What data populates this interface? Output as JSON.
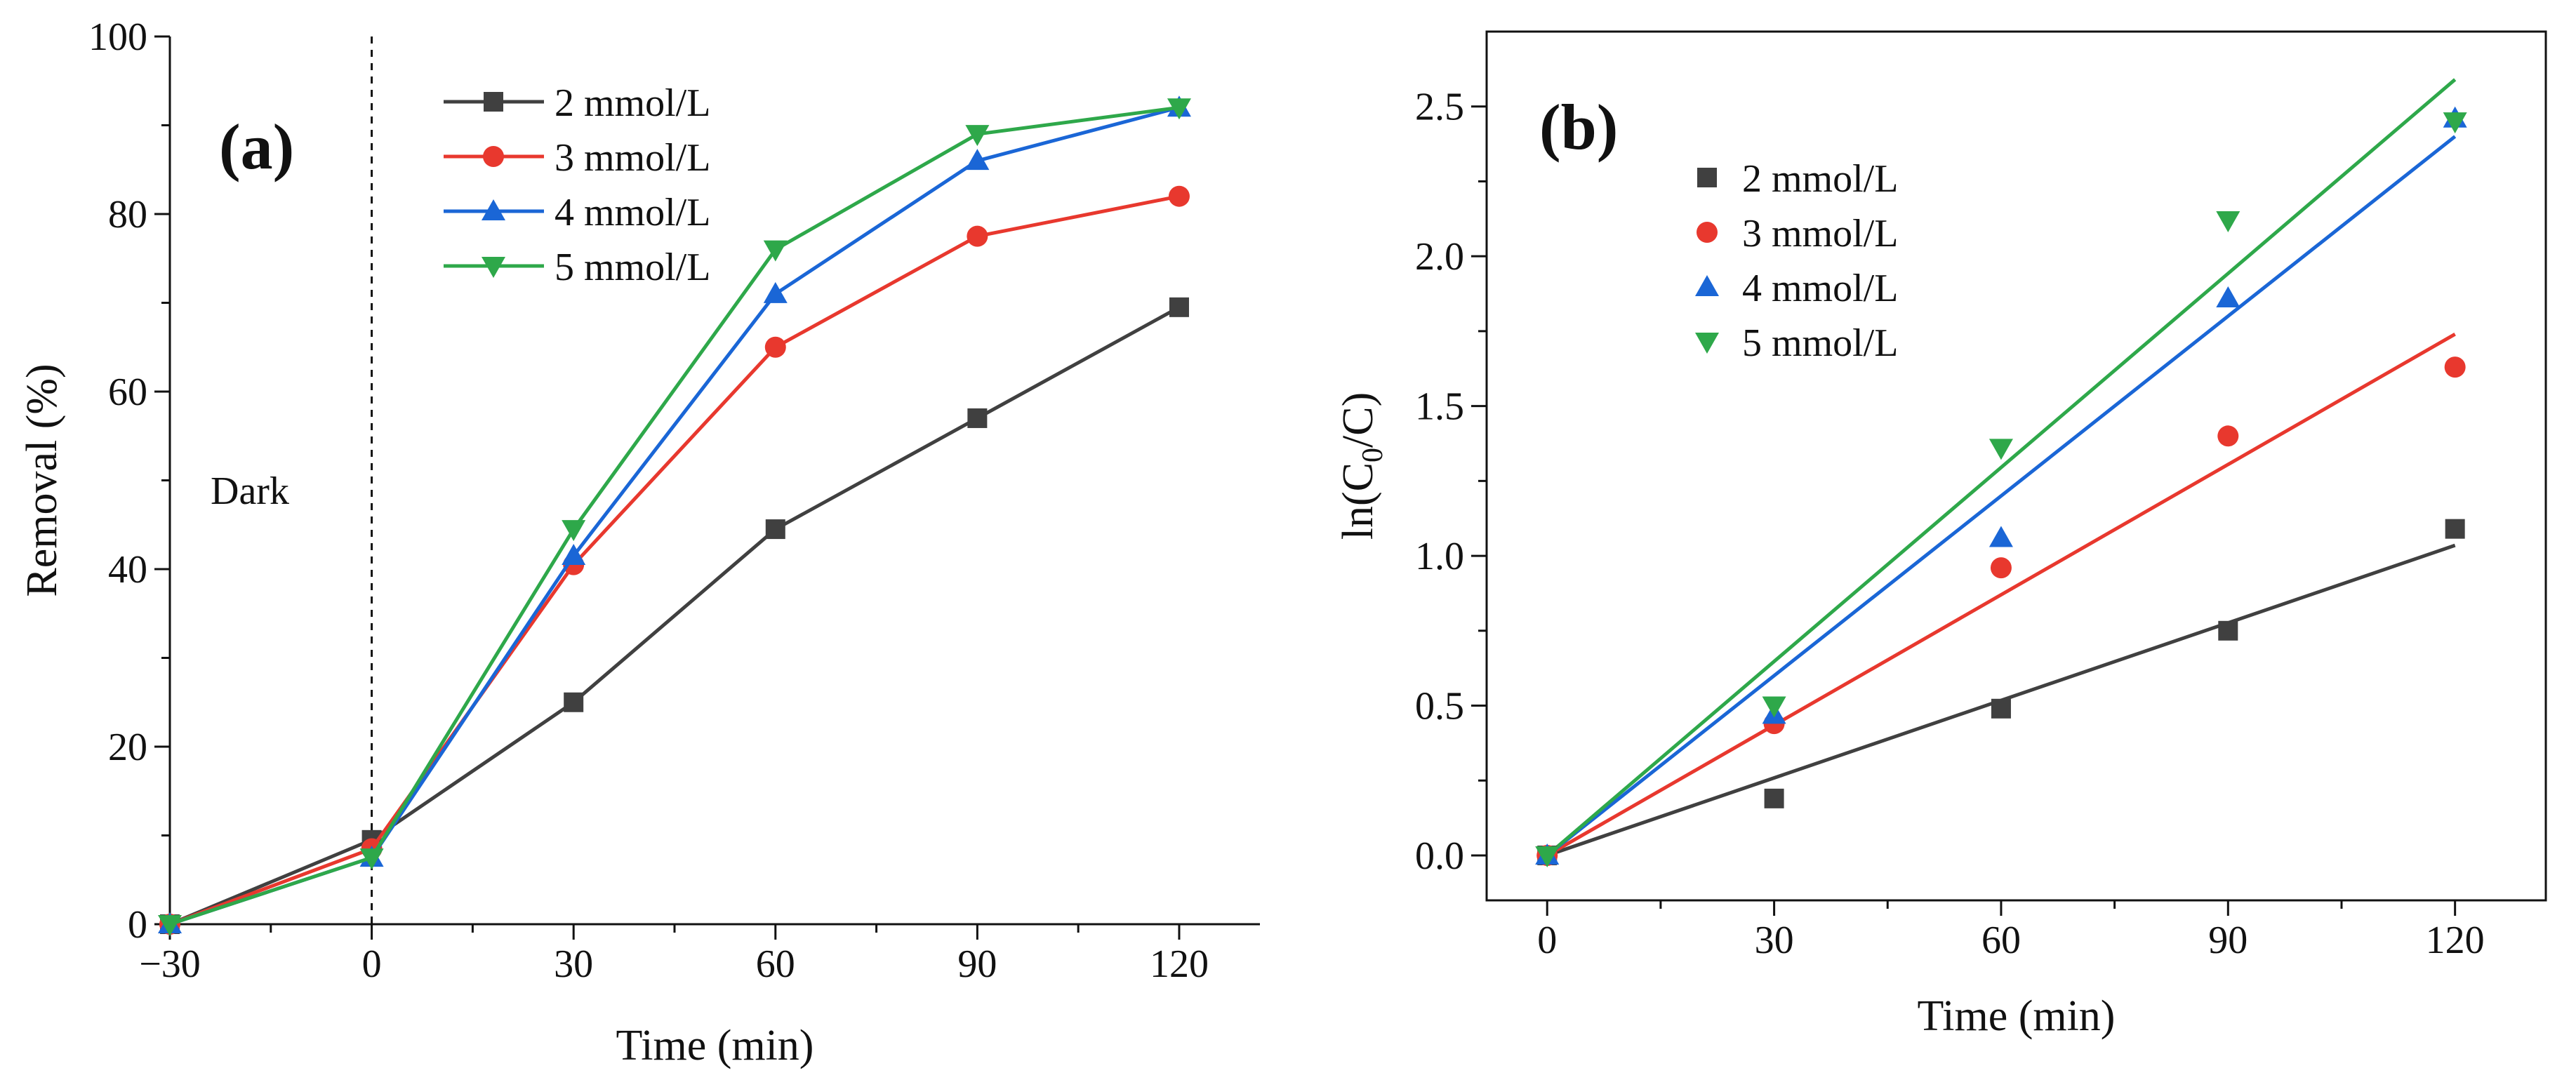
{
  "chart_data": [
    {
      "panel": "(a)",
      "type": "line",
      "xlabel": "Time (min)",
      "ylabel": "Removal (%)",
      "xlim": [
        -30,
        132
      ],
      "ylim": [
        0,
        100
      ],
      "xticks": [
        -30,
        0,
        30,
        60,
        90,
        120
      ],
      "xtick_labels": [
        "−30",
        "0",
        "30",
        "60",
        "90",
        "120"
      ],
      "yticks": [
        0,
        20,
        40,
        60,
        80,
        100
      ],
      "ytick_labels": [
        "0",
        "20",
        "40",
        "60",
        "80",
        "100"
      ],
      "annotation": "Dark",
      "dark_divider_x": 0,
      "legend_position": "top-center",
      "series": [
        {
          "name": "2 mmol/L",
          "color": "#404040",
          "marker": "square",
          "x": [
            -30,
            0,
            30,
            60,
            90,
            120
          ],
          "values": [
            0,
            9.5,
            25,
            44.5,
            57,
            69.5
          ]
        },
        {
          "name": "3 mmol/L",
          "color": "#e8382e",
          "marker": "circle",
          "x": [
            -30,
            0,
            30,
            60,
            90,
            120
          ],
          "values": [
            0,
            8.5,
            40.5,
            65,
            77.5,
            82
          ]
        },
        {
          "name": "4 mmol/L",
          "color": "#1a66d6",
          "marker": "triangle",
          "x": [
            -30,
            0,
            30,
            60,
            90,
            120
          ],
          "values": [
            0,
            7.5,
            41.5,
            71,
            86,
            92
          ]
        },
        {
          "name": "5 mmol/L",
          "color": "#2ea84a",
          "marker": "triangle-down",
          "x": [
            -30,
            0,
            30,
            60,
            90,
            120
          ],
          "values": [
            0,
            7.5,
            44.5,
            76,
            89,
            92
          ]
        }
      ]
    },
    {
      "panel": "(b)",
      "type": "scatter",
      "xlabel": "Time (min)",
      "ylabel_main": "ln(C",
      "ylabel_sub": "0",
      "ylabel_tail": "/C)",
      "xlim": [
        -8,
        132
      ],
      "ylim": [
        -0.15,
        2.75
      ],
      "xticks": [
        0,
        30,
        60,
        90,
        120
      ],
      "xtick_labels": [
        "0",
        "30",
        "60",
        "90",
        "120"
      ],
      "yticks": [
        0,
        0.5,
        1.0,
        1.5,
        2.0,
        2.5
      ],
      "ytick_labels": [
        "0.0",
        "0.5",
        "1.0",
        "1.5",
        "2.0",
        "2.5"
      ],
      "legend_position": "top-left",
      "series": [
        {
          "name": "2 mmol/L",
          "color": "#404040",
          "marker": "square",
          "x": [
            0,
            30,
            60,
            90,
            120
          ],
          "values": [
            0,
            0.19,
            0.49,
            0.75,
            1.09
          ],
          "fit": [
            0,
            1.035
          ]
        },
        {
          "name": "3 mmol/L",
          "color": "#e8382e",
          "marker": "circle",
          "x": [
            0,
            30,
            60,
            90,
            120
          ],
          "values": [
            0,
            0.44,
            0.96,
            1.4,
            1.63
          ],
          "fit": [
            0,
            1.74
          ]
        },
        {
          "name": "4 mmol/L",
          "color": "#1a66d6",
          "marker": "triangle",
          "x": [
            0,
            30,
            60,
            90,
            120
          ],
          "values": [
            0,
            0.47,
            1.06,
            1.86,
            2.46
          ],
          "fit": [
            0,
            2.4
          ]
        },
        {
          "name": "5 mmol/L",
          "color": "#2ea84a",
          "marker": "triangle-down",
          "x": [
            0,
            30,
            60,
            90,
            120
          ],
          "values": [
            0,
            0.5,
            1.36,
            2.12,
            2.45
          ],
          "fit": [
            0,
            2.59
          ]
        }
      ]
    }
  ]
}
